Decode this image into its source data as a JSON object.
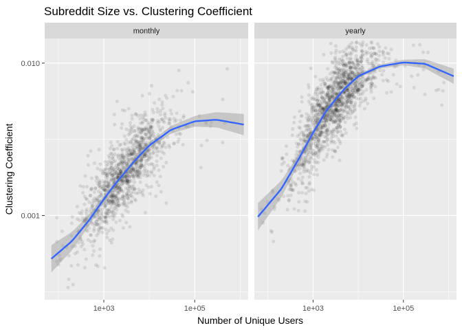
{
  "chart_data": {
    "type": "scatter",
    "title": "Subreddit Size vs. Clustering Coefficient",
    "xlabel": "Number of Unique Users",
    "ylabel": "Clustering Coefficient",
    "x_scale": "log10",
    "y_scale": "log10",
    "xlim": [
      50,
      1500000
    ],
    "ylim": [
      0.00028,
      0.0145
    ],
    "x_ticks": [
      {
        "value": 1000,
        "label": "1e+03"
      },
      {
        "value": 100000,
        "label": "1e+05"
      }
    ],
    "y_ticks": [
      {
        "value": 0.001,
        "label": "0.001"
      },
      {
        "value": 0.01,
        "label": "0.010"
      }
    ],
    "grid": true,
    "colors": {
      "panel_bg": "#ebebeb",
      "strip_bg": "#d9d9d9",
      "points": "#000000",
      "smooth_line": "#3366ff",
      "ribbon": "#999999",
      "grid": "#ffffff"
    },
    "panels": [
      {
        "facet": "monthly",
        "n_points": 1200,
        "smooth": {
          "x": [
            70,
            200,
            500,
            1000,
            2000,
            5000,
            10000,
            30000,
            100000,
            300000,
            1200000
          ],
          "y": [
            0.00052,
            0.00068,
            0.00095,
            0.00128,
            0.00168,
            0.00232,
            0.00288,
            0.00365,
            0.00415,
            0.00425,
            0.00395
          ],
          "ribbon_halfwidth_log10": [
            0.09,
            0.06,
            0.035,
            0.02,
            0.015,
            0.015,
            0.02,
            0.025,
            0.035,
            0.05,
            0.07
          ]
        }
      },
      {
        "facet": "yearly",
        "n_points": 1500,
        "smooth": {
          "x": [
            60,
            200,
            500,
            1000,
            2000,
            5000,
            10000,
            30000,
            100000,
            300000,
            1300000
          ],
          "y": [
            0.00098,
            0.0015,
            0.0024,
            0.0035,
            0.0049,
            0.0068,
            0.0082,
            0.0095,
            0.0101,
            0.0099,
            0.0082
          ],
          "ribbon_halfwidth_log10": [
            0.09,
            0.055,
            0.03,
            0.02,
            0.015,
            0.012,
            0.012,
            0.014,
            0.018,
            0.03,
            0.05
          ]
        }
      }
    ]
  }
}
